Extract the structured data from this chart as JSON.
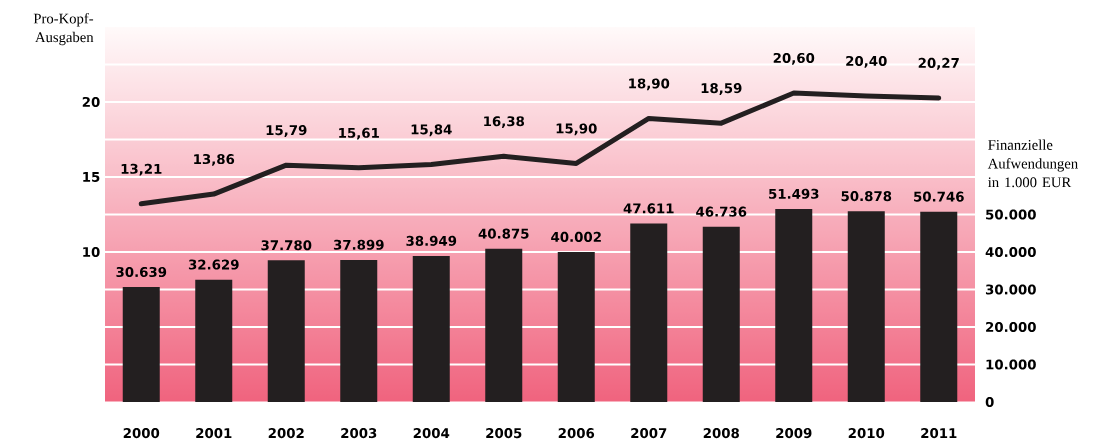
{
  "chart_data": {
    "type": "bar",
    "ylabel": "Pro-Kopf-Ausgaben",
    "y2label": "Finanzielle Aufwendungen in 1.000 EUR",
    "categories": [
      "2000",
      "2001",
      "2002",
      "2003",
      "2004",
      "2005",
      "2006",
      "2007",
      "2008",
      "2009",
      "2010",
      "2011"
    ],
    "series": [
      {
        "axis": "y2",
        "color": "#231f20",
        "values": [
          30639,
          32629,
          37780,
          37899,
          38949,
          40875,
          40002,
          47611,
          46736,
          51493,
          50878,
          50746
        ],
        "value_labels": [
          "30.639",
          "32.629",
          "37.780",
          "37.899",
          "38.949",
          "40.875",
          "40.002",
          "47.611",
          "46.736",
          "51.493",
          "50.878",
          "50.746"
        ]
      },
      {
        "type": "line",
        "axis": "y",
        "color": "#231f20",
        "values": [
          13.21,
          13.86,
          15.79,
          15.61,
          15.84,
          16.38,
          15.9,
          18.9,
          18.59,
          20.6,
          20.4,
          20.27
        ],
        "value_labels": [
          "13,21",
          "13,86",
          "15,79",
          "15,61",
          "15,84",
          "16,38",
          "15,90",
          "18,90",
          "18,59",
          "20,60",
          "20,40",
          "20,27"
        ]
      }
    ],
    "ylim": [
      0,
      25
    ],
    "yticks": [
      {
        "value": 2.5,
        "label": null
      },
      {
        "value": 5,
        "label": null
      },
      {
        "value": 7.5,
        "label": null
      },
      10,
      {
        "value": 12.5,
        "label": null
      },
      15,
      {
        "value": 17.5,
        "label": null
      },
      20,
      {
        "value": 22.5,
        "label": null
      }
    ],
    "y2lim": [
      0,
      100000
    ],
    "y2ticks": [
      0,
      {
        "value": 10000,
        "label": "10.000"
      },
      {
        "value": 20000,
        "label": "20.000"
      },
      {
        "value": 30000,
        "label": "30.000"
      },
      {
        "value": 40000,
        "label": "40.000"
      },
      {
        "value": 50000,
        "label": "50.000"
      }
    ],
    "grid": "y"
  }
}
